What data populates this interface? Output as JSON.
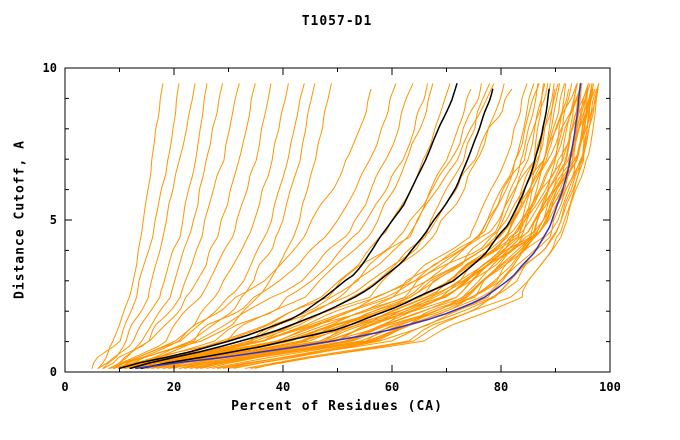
{
  "chart_data": {
    "type": "line",
    "title": "T1057-D1",
    "xlabel": "Percent of Residues (CA)",
    "ylabel": "Distance Cutoff, A",
    "xlim": [
      0,
      100
    ],
    "ylim": [
      0,
      10
    ],
    "xticks": [
      0,
      20,
      40,
      60,
      80,
      100
    ],
    "yticks": [
      0,
      5,
      10
    ],
    "x_minor_step": 10,
    "y_minor_step": 1,
    "grid": false,
    "legend": null,
    "colors": {
      "orange": "#ff9500",
      "black": "#000000",
      "blue": "#3333cc"
    },
    "y_anchors": [
      0.15,
      1,
      2.5,
      4.5,
      7,
      9.6
    ],
    "orange_curves": [
      [
        6,
        9,
        12,
        14,
        16,
        18
      ],
      [
        5,
        10,
        13,
        16,
        19,
        21
      ],
      [
        7,
        11,
        15,
        18,
        21,
        24
      ],
      [
        6,
        12,
        17,
        21,
        24,
        26
      ],
      [
        8,
        14,
        19,
        23,
        26,
        29
      ],
      [
        7,
        15,
        21,
        25,
        29,
        32
      ],
      [
        9,
        16,
        23,
        28,
        32,
        35
      ],
      [
        8,
        18,
        25,
        31,
        35,
        38
      ],
      [
        10,
        20,
        28,
        34,
        38,
        41
      ],
      [
        9,
        22,
        31,
        37,
        41,
        44
      ],
      [
        11,
        24,
        33,
        39,
        43,
        46
      ],
      [
        10,
        26,
        36,
        42,
        46,
        49
      ],
      [
        9,
        20,
        33,
        44,
        52,
        57
      ],
      [
        10,
        22,
        36,
        48,
        56,
        61
      ],
      [
        11,
        25,
        40,
        52,
        59,
        64
      ],
      [
        12,
        28,
        44,
        56,
        63,
        68
      ],
      [
        13,
        30,
        47,
        59,
        66,
        71
      ],
      [
        14,
        33,
        51,
        63,
        70,
        75
      ],
      [
        12,
        27,
        42,
        54,
        62,
        67
      ],
      [
        15,
        35,
        54,
        66,
        73,
        78
      ],
      [
        13,
        32,
        50,
        63,
        72,
        79
      ],
      [
        16,
        36,
        55,
        68,
        76,
        81
      ],
      [
        11,
        30,
        48,
        62,
        71,
        77
      ],
      [
        14,
        34,
        53,
        67,
        75,
        83
      ],
      [
        8,
        36,
        58,
        74,
        81,
        85
      ],
      [
        12,
        40,
        62,
        77,
        83,
        86
      ],
      [
        16,
        44,
        65,
        79,
        84,
        87
      ],
      [
        10,
        38,
        60,
        76,
        83,
        87
      ],
      [
        20,
        48,
        68,
        81,
        86,
        88
      ],
      [
        14,
        42,
        64,
        79,
        85,
        88
      ],
      [
        24,
        52,
        71,
        83,
        87,
        89
      ],
      [
        9,
        37,
        59,
        76,
        84,
        89
      ],
      [
        18,
        46,
        67,
        81,
        87,
        90
      ],
      [
        26,
        54,
        73,
        84,
        88,
        90
      ],
      [
        11,
        39,
        62,
        78,
        86,
        91
      ],
      [
        22,
        50,
        70,
        83,
        88,
        91
      ],
      [
        15,
        43,
        66,
        81,
        88,
        92
      ],
      [
        28,
        56,
        75,
        86,
        90,
        92
      ],
      [
        13,
        41,
        64,
        80,
        88,
        93
      ],
      [
        19,
        47,
        69,
        83,
        90,
        93
      ],
      [
        25,
        53,
        74,
        86,
        91,
        94
      ],
      [
        10,
        38,
        61,
        79,
        88,
        94
      ],
      [
        30,
        58,
        77,
        87,
        92,
        94
      ],
      [
        16,
        44,
        67,
        82,
        90,
        95
      ],
      [
        21,
        49,
        71,
        85,
        92,
        95
      ],
      [
        12,
        40,
        63,
        80,
        89,
        95
      ],
      [
        27,
        55,
        76,
        87,
        93,
        96
      ],
      [
        17,
        45,
        68,
        83,
        91,
        96
      ],
      [
        23,
        51,
        73,
        86,
        93,
        96
      ],
      [
        14,
        42,
        66,
        82,
        91,
        97
      ],
      [
        31,
        59,
        79,
        89,
        94,
        97
      ],
      [
        19,
        48,
        70,
        85,
        93,
        97
      ],
      [
        25,
        54,
        75,
        87,
        94,
        98
      ],
      [
        15,
        44,
        68,
        84,
        92,
        98
      ],
      [
        33,
        62,
        80,
        90,
        95,
        98
      ],
      [
        21,
        50,
        72,
        86,
        94,
        97
      ],
      [
        28,
        57,
        78,
        89,
        95,
        96
      ],
      [
        17,
        46,
        70,
        85,
        93,
        95
      ],
      [
        34,
        63,
        82,
        91,
        95,
        97
      ],
      [
        23,
        52,
        74,
        87,
        94,
        96
      ],
      [
        35,
        64,
        83,
        91,
        96,
        98
      ],
      [
        18,
        47,
        71,
        86,
        94,
        97
      ],
      [
        29,
        58,
        79,
        90,
        95,
        98
      ],
      [
        24,
        53,
        76,
        88,
        95,
        97
      ]
    ],
    "black_curves": [
      [
        [
          10,
          0.15
        ],
        [
          22,
          0.6
        ],
        [
          32,
          1.1
        ],
        [
          42,
          1.8
        ],
        [
          48,
          2.5
        ],
        [
          53,
          3.2
        ],
        [
          57,
          4.2
        ],
        [
          59,
          4.7
        ],
        [
          62,
          5.5
        ],
        [
          65,
          6.5
        ],
        [
          67,
          7.3
        ],
        [
          69,
          8.2
        ],
        [
          71,
          9.0
        ],
        [
          72,
          9.6
        ]
      ],
      [
        [
          12,
          0.15
        ],
        [
          26,
          0.7
        ],
        [
          38,
          1.3
        ],
        [
          48,
          2.0
        ],
        [
          56,
          2.8
        ],
        [
          62,
          3.6
        ],
        [
          66,
          4.5
        ],
        [
          69,
          5.3
        ],
        [
          72,
          6.2
        ],
        [
          74,
          7.0
        ],
        [
          76,
          8.0
        ],
        [
          78,
          9.0
        ],
        [
          79,
          9.6
        ]
      ],
      [
        [
          14,
          0.15
        ],
        [
          35,
          0.8
        ],
        [
          50,
          1.4
        ],
        [
          62,
          2.2
        ],
        [
          71,
          3.0
        ],
        [
          77,
          3.9
        ],
        [
          81,
          4.8
        ],
        [
          84,
          5.8
        ],
        [
          86,
          6.8
        ],
        [
          87.5,
          7.8
        ],
        [
          88.5,
          8.8
        ],
        [
          89,
          9.6
        ]
      ]
    ],
    "blue_curve": [
      [
        13,
        0.15
      ],
      [
        30,
        0.5
      ],
      [
        45,
        0.9
      ],
      [
        58,
        1.3
      ],
      [
        68,
        1.8
      ],
      [
        76,
        2.4
      ],
      [
        82,
        3.1
      ],
      [
        86,
        3.9
      ],
      [
        89,
        4.8
      ],
      [
        91,
        5.8
      ],
      [
        92.5,
        6.8
      ],
      [
        93.5,
        7.8
      ],
      [
        94.2,
        8.8
      ],
      [
        94.6,
        9.6
      ]
    ]
  }
}
